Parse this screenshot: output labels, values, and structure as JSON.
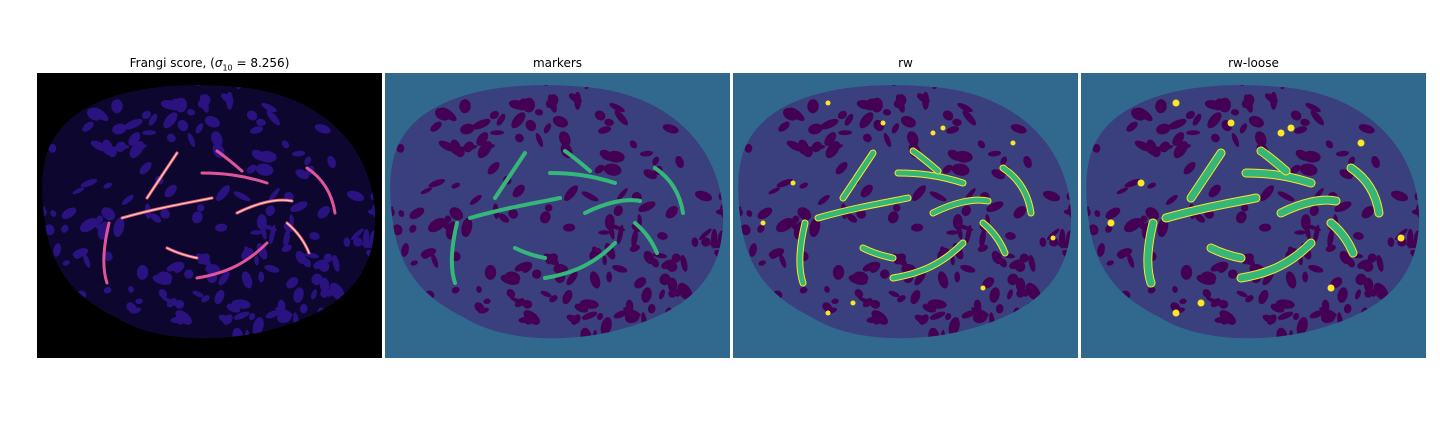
{
  "figure": {
    "panels": [
      {
        "id": "frangi",
        "title_prefix": "Frangi score, (",
        "sigma_symbol": "σ",
        "sigma_sub": "10",
        "sigma_value": " = 8.256)",
        "background": "#000000",
        "blob": "#2a1280",
        "vessel": "#e0559a",
        "highlight": "#fbd48a"
      },
      {
        "id": "markers",
        "title": "markers",
        "background": "#31688e",
        "blob": "#440154",
        "vessel": "#35b779"
      },
      {
        "id": "rw",
        "title": "rw",
        "background": "#31688e",
        "blob": "#440154",
        "vessel": "#35b779",
        "edge": "#fde725"
      },
      {
        "id": "rw-loose",
        "title": "rw-loose",
        "background": "#31688e",
        "blob": "#440154",
        "vessel": "#35b779",
        "edge": "#fde725"
      }
    ]
  }
}
